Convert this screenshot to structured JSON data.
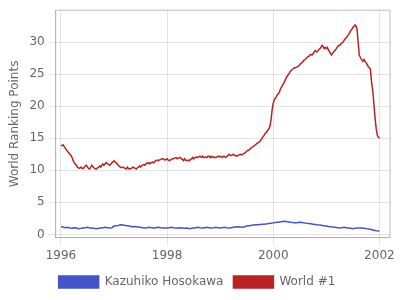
{
  "chart_data": {
    "type": "line",
    "ylabel": "World Ranking Points",
    "xlim": [
      1995.9,
      2002.2
    ],
    "ylim": [
      -0.5,
      35
    ],
    "xticks": [
      1996,
      1998,
      2000,
      2002
    ],
    "yticks": [
      0,
      5,
      10,
      15,
      20,
      25,
      30
    ],
    "grid": true,
    "legend": "bottom",
    "series": [
      {
        "name": "Kazuhiko Hosokawa",
        "color": "#4455cc",
        "x": [
          1996.0,
          1996.04,
          1996.08,
          1996.12,
          1996.17,
          1996.21,
          1996.25,
          1996.29,
          1996.33,
          1996.38,
          1996.42,
          1996.46,
          1996.5,
          1996.54,
          1996.58,
          1996.62,
          1996.67,
          1996.71,
          1996.75,
          1996.79,
          1996.83,
          1996.88,
          1996.92,
          1996.96,
          1997.0,
          1997.04,
          1997.08,
          1997.12,
          1997.17,
          1997.21,
          1997.25,
          1997.29,
          1997.33,
          1997.38,
          1997.42,
          1997.46,
          1997.5,
          1997.54,
          1997.58,
          1997.62,
          1997.67,
          1997.71,
          1997.75,
          1997.79,
          1997.83,
          1997.88,
          1997.92,
          1997.96,
          1998.0,
          1998.04,
          1998.08,
          1998.12,
          1998.17,
          1998.21,
          1998.25,
          1998.29,
          1998.33,
          1998.38,
          1998.42,
          1998.46,
          1998.5,
          1998.54,
          1998.58,
          1998.62,
          1998.67,
          1998.71,
          1998.75,
          1998.79,
          1998.83,
          1998.88,
          1998.92,
          1998.96,
          1999.0,
          1999.04,
          1999.08,
          1999.12,
          1999.17,
          1999.21,
          1999.25,
          1999.29,
          1999.33,
          1999.38,
          1999.42,
          1999.46,
          1999.5,
          1999.54,
          1999.58,
          1999.62,
          1999.67,
          1999.71,
          1999.75,
          1999.79,
          1999.83,
          1999.88,
          1999.92,
          1999.96,
          2000.0,
          2000.04,
          2000.08,
          2000.12,
          2000.17,
          2000.21,
          2000.25,
          2000.29,
          2000.33,
          2000.38,
          2000.42,
          2000.46,
          2000.5,
          2000.54,
          2000.58,
          2000.62,
          2000.67,
          2000.71,
          2000.75,
          2000.79,
          2000.83,
          2000.88,
          2000.92,
          2000.96,
          2001.0,
          2001.04,
          2001.08,
          2001.12,
          2001.17,
          2001.21,
          2001.25,
          2001.29,
          2001.33,
          2001.38,
          2001.42,
          2001.46,
          2001.5,
          2001.54,
          2001.58,
          2001.62,
          2001.67,
          2001.71,
          2001.75,
          2001.79,
          2001.83,
          2001.88,
          2001.92,
          2001.96,
          2002.0
        ],
        "values": [
          1.2,
          1.15,
          1.05,
          1.1,
          1.0,
          0.95,
          1.05,
          1.0,
          0.9,
          0.95,
          1.0,
          1.05,
          1.1,
          1.0,
          1.0,
          0.95,
          0.9,
          0.95,
          1.0,
          1.05,
          1.1,
          1.05,
          1.0,
          1.05,
          1.3,
          1.35,
          1.4,
          1.5,
          1.45,
          1.4,
          1.35,
          1.3,
          1.2,
          1.25,
          1.2,
          1.15,
          1.1,
          1.05,
          1.0,
          1.05,
          1.1,
          1.05,
          1.0,
          1.05,
          1.1,
          1.05,
          1.0,
          1.0,
          1.0,
          1.05,
          1.1,
          1.05,
          1.0,
          1.0,
          1.05,
          1.0,
          0.95,
          1.0,
          0.9,
          0.95,
          1.0,
          1.05,
          1.1,
          1.05,
          1.0,
          1.05,
          1.1,
          1.05,
          1.0,
          1.05,
          1.1,
          1.05,
          1.0,
          1.05,
          1.1,
          1.05,
          1.0,
          1.05,
          1.1,
          1.15,
          1.2,
          1.15,
          1.1,
          1.2,
          1.3,
          1.35,
          1.4,
          1.45,
          1.5,
          1.5,
          1.55,
          1.6,
          1.6,
          1.65,
          1.7,
          1.75,
          1.8,
          1.85,
          1.9,
          1.95,
          2.0,
          2.05,
          2.0,
          1.95,
          1.9,
          1.85,
          1.8,
          1.85,
          1.9,
          1.85,
          1.8,
          1.75,
          1.7,
          1.65,
          1.6,
          1.55,
          1.5,
          1.45,
          1.4,
          1.35,
          1.3,
          1.25,
          1.2,
          1.15,
          1.1,
          1.05,
          1.0,
          1.05,
          1.1,
          1.05,
          1.0,
          0.95,
          0.9,
          0.95,
          1.0,
          1.0,
          1.0,
          0.95,
          0.9,
          0.85,
          0.8,
          0.7,
          0.6,
          0.55,
          0.5
        ]
      },
      {
        "name": "World #1",
        "color": "#bb2222",
        "x": [
          1996.0,
          1996.02,
          1996.04,
          1996.06,
          1996.08,
          1996.1,
          1996.12,
          1996.14,
          1996.17,
          1996.19,
          1996.21,
          1996.23,
          1996.25,
          1996.27,
          1996.29,
          1996.31,
          1996.33,
          1996.35,
          1996.38,
          1996.4,
          1996.42,
          1996.44,
          1996.46,
          1996.48,
          1996.5,
          1996.52,
          1996.54,
          1996.56,
          1996.58,
          1996.6,
          1996.62,
          1996.65,
          1996.67,
          1996.69,
          1996.71,
          1996.73,
          1996.75,
          1996.77,
          1996.79,
          1996.81,
          1996.83,
          1996.85,
          1996.88,
          1996.9,
          1996.92,
          1996.94,
          1996.96,
          1996.98,
          1997.0,
          1997.02,
          1997.04,
          1997.06,
          1997.08,
          1997.1,
          1997.12,
          1997.14,
          1997.17,
          1997.19,
          1997.21,
          1997.23,
          1997.25,
          1997.27,
          1997.29,
          1997.31,
          1997.33,
          1997.35,
          1997.38,
          1997.4,
          1997.42,
          1997.44,
          1997.46,
          1997.48,
          1997.5,
          1997.52,
          1997.54,
          1997.56,
          1997.58,
          1997.6,
          1997.62,
          1997.65,
          1997.67,
          1997.69,
          1997.71,
          1997.73,
          1997.75,
          1997.77,
          1997.79,
          1997.81,
          1997.83,
          1997.85,
          1997.88,
          1997.9,
          1997.92,
          1997.94,
          1997.96,
          1997.98,
          1998.0,
          1998.02,
          1998.04,
          1998.06,
          1998.08,
          1998.1,
          1998.12,
          1998.14,
          1998.17,
          1998.19,
          1998.21,
          1998.23,
          1998.25,
          1998.27,
          1998.29,
          1998.31,
          1998.33,
          1998.35,
          1998.38,
          1998.4,
          1998.42,
          1998.44,
          1998.46,
          1998.48,
          1998.5,
          1998.52,
          1998.54,
          1998.56,
          1998.58,
          1998.6,
          1998.62,
          1998.65,
          1998.67,
          1998.69,
          1998.71,
          1998.73,
          1998.75,
          1998.77,
          1998.79,
          1998.81,
          1998.83,
          1998.85,
          1998.88,
          1998.9,
          1998.92,
          1998.94,
          1998.96,
          1998.98,
          1999.0,
          1999.02,
          1999.04,
          1999.06,
          1999.08,
          1999.1,
          1999.12,
          1999.14,
          1999.17,
          1999.19,
          1999.21,
          1999.23,
          1999.25,
          1999.27,
          1999.29,
          1999.31,
          1999.33,
          1999.35,
          1999.38,
          1999.4,
          1999.42,
          1999.44,
          1999.46,
          1999.48,
          1999.5,
          1999.52,
          1999.54,
          1999.56,
          1999.58,
          1999.6,
          1999.62,
          1999.65,
          1999.67,
          1999.69,
          1999.71,
          1999.73,
          1999.75,
          1999.77,
          1999.79,
          1999.81,
          1999.83,
          1999.85,
          1999.88,
          1999.9,
          1999.92,
          1999.94,
          1999.96,
          1999.98,
          2000.0,
          2000.02,
          2000.04,
          2000.06,
          2000.08,
          2000.1,
          2000.12,
          2000.14,
          2000.17,
          2000.19,
          2000.21,
          2000.23,
          2000.25,
          2000.27,
          2000.29,
          2000.31,
          2000.33,
          2000.35,
          2000.38,
          2000.4,
          2000.42,
          2000.44,
          2000.46,
          2000.48,
          2000.5,
          2000.52,
          2000.54,
          2000.56,
          2000.58,
          2000.6,
          2000.62,
          2000.65,
          2000.67,
          2000.69,
          2000.71,
          2000.73,
          2000.75,
          2000.77,
          2000.79,
          2000.81,
          2000.83,
          2000.85,
          2000.88,
          2000.9,
          2000.92,
          2000.94,
          2000.96,
          2000.98,
          2001.0,
          2001.02,
          2001.04,
          2001.06,
          2001.08,
          2001.1,
          2001.12,
          2001.14,
          2001.17,
          2001.19,
          2001.21,
          2001.23,
          2001.25,
          2001.27,
          2001.29,
          2001.31,
          2001.33,
          2001.35,
          2001.38,
          2001.4,
          2001.42,
          2001.44,
          2001.46,
          2001.48,
          2001.5,
          2001.52,
          2001.54,
          2001.56,
          2001.58,
          2001.6,
          2001.62,
          2001.65,
          2001.67,
          2001.69,
          2001.71,
          2001.73,
          2001.75,
          2001.77,
          2001.79,
          2001.81,
          2001.83,
          2001.85,
          2001.88,
          2001.9,
          2001.92,
          2001.94,
          2001.96,
          2001.98,
          2002.0
        ],
        "values": [
          13.8,
          13.9,
          14.0,
          13.7,
          13.5,
          13.2,
          13.0,
          12.8,
          12.5,
          12.3,
          12.0,
          11.5,
          11.2,
          11.0,
          10.8,
          10.5,
          10.4,
          10.3,
          10.5,
          10.3,
          10.3,
          10.5,
          10.7,
          10.8,
          10.5,
          10.3,
          10.2,
          10.5,
          10.8,
          10.6,
          10.4,
          10.2,
          10.2,
          10.4,
          10.5,
          10.7,
          10.5,
          10.8,
          11.0,
          10.8,
          11.0,
          11.2,
          11.0,
          10.9,
          10.8,
          11.0,
          11.2,
          11.3,
          11.5,
          11.3,
          11.2,
          11.0,
          10.8,
          10.6,
          10.5,
          10.4,
          10.5,
          10.4,
          10.3,
          10.2,
          10.5,
          10.3,
          10.2,
          10.3,
          10.3,
          10.5,
          10.4,
          10.3,
          10.2,
          10.4,
          10.5,
          10.7,
          10.5,
          10.7,
          10.8,
          10.9,
          10.8,
          11.0,
          11.1,
          11.2,
          11.0,
          11.2,
          11.2,
          11.3,
          11.2,
          11.4,
          11.5,
          11.6,
          11.5,
          11.6,
          11.7,
          11.8,
          11.8,
          11.7,
          11.6,
          11.7,
          11.8,
          11.6,
          11.5,
          11.6,
          11.7,
          11.8,
          11.8,
          11.9,
          12.0,
          11.8,
          11.9,
          12.0,
          12.0,
          11.8,
          11.7,
          11.5,
          11.8,
          11.6,
          11.5,
          11.6,
          11.5,
          11.7,
          11.8,
          12.0,
          11.8,
          12.0,
          12.0,
          12.1,
          12.0,
          12.1,
          12.2,
          12.0,
          12.2,
          12.0,
          12.0,
          12.1,
          12.0,
          12.2,
          12.2,
          12.0,
          12.2,
          12.0,
          12.1,
          12.0,
          12.0,
          12.1,
          12.2,
          12.1,
          12.2,
          12.1,
          12.0,
          12.2,
          12.2,
          12.0,
          12.1,
          12.3,
          12.5,
          12.3,
          12.3,
          12.4,
          12.5,
          12.3,
          12.3,
          12.2,
          12.3,
          12.4,
          12.5,
          12.4,
          12.5,
          12.6,
          12.7,
          12.8,
          13.0,
          13.1,
          13.2,
          13.3,
          13.5,
          13.6,
          13.7,
          13.9,
          14.0,
          14.2,
          14.3,
          14.4,
          14.5,
          14.8,
          15.0,
          15.3,
          15.5,
          15.8,
          16.0,
          16.3,
          16.5,
          17.0,
          18.0,
          19.5,
          20.5,
          21.0,
          21.3,
          21.5,
          21.8,
          22.0,
          22.3,
          22.8,
          23.2,
          23.5,
          23.8,
          24.2,
          24.5,
          24.8,
          25.0,
          25.3,
          25.5,
          25.7,
          25.9,
          26.0,
          26.0,
          26.1,
          26.2,
          26.3,
          26.5,
          26.7,
          26.8,
          27.0,
          27.2,
          27.3,
          27.5,
          27.7,
          27.8,
          28.0,
          28.1,
          28.0,
          28.2,
          28.5,
          28.7,
          28.5,
          28.5,
          28.8,
          29.0,
          29.2,
          29.5,
          29.3,
          29.0,
          29.2,
          29.0,
          29.2,
          28.8,
          28.5,
          28.2,
          28.0,
          28.3,
          28.5,
          28.8,
          29.0,
          29.3,
          29.5,
          29.5,
          29.7,
          29.8,
          30.0,
          30.2,
          30.5,
          30.7,
          31.0,
          31.2,
          31.5,
          31.8,
          32.0,
          32.3,
          32.5,
          32.7,
          32.5,
          32.0,
          30.0,
          28.0,
          27.5,
          27.2,
          27.0,
          27.3,
          27.0,
          26.8,
          26.5,
          26.2,
          26.0,
          25.8,
          24.0,
          22.0,
          20.0,
          18.0,
          16.5,
          15.5,
          15.2,
          15.0
        ]
      }
    ]
  }
}
